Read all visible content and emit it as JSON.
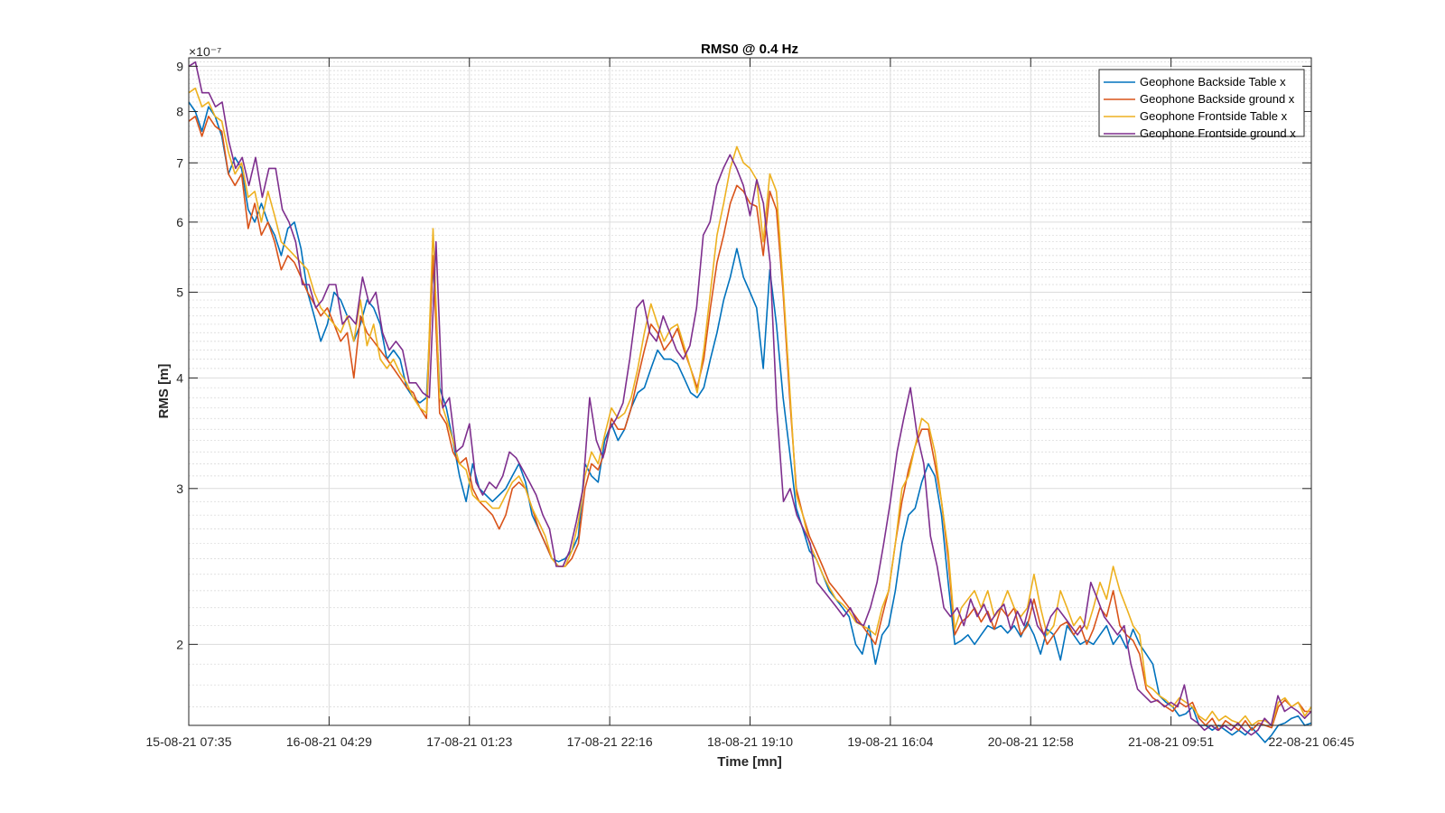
{
  "chart_data": {
    "type": "line",
    "title": "RMS0 @ 0.4 Hz",
    "xlabel": "Time [mn]",
    "ylabel": "RMS [m]",
    "y_exponent": "×10⁻⁷",
    "y_scale": "log",
    "ylim": [
      1.62,
      9.2
    ],
    "xlim": [
      0,
      168
    ],
    "y_ticks": [
      2,
      3,
      4,
      5,
      6,
      7,
      8,
      9
    ],
    "y_tick_labels": [
      "2",
      "3",
      "4",
      "5",
      "6",
      "7",
      "8",
      "9"
    ],
    "x_ticks": [
      0,
      21,
      42,
      63,
      84,
      105,
      126,
      147,
      168
    ],
    "x_tick_labels": [
      "15-08-21 07:35",
      "16-08-21 04:29",
      "17-08-21 01:23",
      "17-08-21 22:16",
      "18-08-21 19:10",
      "19-08-21 16:04",
      "20-08-21 12:58",
      "21-08-21 09:51",
      "22-08-21 06:45"
    ],
    "grid": true,
    "legend_position": "top-right",
    "series": [
      {
        "name": "Geophone Backside Table x",
        "color": "#0072BD",
        "values": [
          8.2,
          8.0,
          7.6,
          8.1,
          7.9,
          7.5,
          6.8,
          7.1,
          6.9,
          6.2,
          6.0,
          6.3,
          6.0,
          5.8,
          5.5,
          5.9,
          6.0,
          5.6,
          5.0,
          4.7,
          4.4,
          4.6,
          5.0,
          4.9,
          4.7,
          4.4,
          4.6,
          4.9,
          4.8,
          4.6,
          4.2,
          4.3,
          4.2,
          3.9,
          3.8,
          3.75,
          3.8,
          5.4,
          3.9,
          3.7,
          3.4,
          3.1,
          2.9,
          3.2,
          3.0,
          2.95,
          2.9,
          2.95,
          3.0,
          3.1,
          3.2,
          3.05,
          2.8,
          2.7,
          2.6,
          2.5,
          2.48,
          2.5,
          2.55,
          2.65,
          3.2,
          3.1,
          3.05,
          3.4,
          3.55,
          3.4,
          3.5,
          3.7,
          3.85,
          3.9,
          4.1,
          4.3,
          4.2,
          4.2,
          4.15,
          4.0,
          3.85,
          3.8,
          3.9,
          4.2,
          4.5,
          4.9,
          5.2,
          5.6,
          5.2,
          5.0,
          4.8,
          4.1,
          5.3,
          4.6,
          3.8,
          3.3,
          2.85,
          2.7,
          2.55,
          2.5,
          2.4,
          2.3,
          2.25,
          2.2,
          2.15,
          2.0,
          1.95,
          2.1,
          1.9,
          2.05,
          2.1,
          2.3,
          2.6,
          2.8,
          2.85,
          3.05,
          3.2,
          3.1,
          2.8,
          2.35,
          2.0,
          2.02,
          2.05,
          2.0,
          2.05,
          2.1,
          2.08,
          2.1,
          2.06,
          2.1,
          2.04,
          2.12,
          2.05,
          1.95,
          2.08,
          2.05,
          1.92,
          2.1,
          2.05,
          2.0,
          2.02,
          2.0,
          2.05,
          2.1,
          2.0,
          2.05,
          1.98,
          2.08,
          2.0,
          1.95,
          1.9,
          1.75,
          1.72,
          1.7,
          1.66,
          1.67,
          1.7,
          1.62,
          1.62,
          1.6,
          1.62,
          1.6,
          1.58,
          1.6,
          1.58,
          1.61,
          1.58,
          1.55,
          1.58,
          1.62,
          1.63,
          1.65,
          1.66,
          1.62,
          1.63
        ]
      },
      {
        "name": "Geophone Backside ground x",
        "color": "#D95319",
        "values": [
          7.8,
          7.9,
          7.5,
          7.9,
          7.7,
          7.6,
          6.8,
          6.6,
          6.8,
          5.9,
          6.3,
          5.8,
          6.0,
          5.7,
          5.3,
          5.5,
          5.4,
          5.2,
          5.0,
          4.85,
          4.7,
          4.8,
          4.6,
          4.4,
          4.5,
          4.0,
          4.7,
          4.5,
          4.4,
          4.3,
          4.2,
          4.1,
          4.0,
          3.9,
          3.85,
          3.7,
          3.6,
          5.5,
          3.65,
          3.55,
          3.3,
          3.2,
          3.25,
          3.0,
          2.9,
          2.85,
          2.8,
          2.7,
          2.8,
          3.0,
          3.05,
          3.0,
          2.85,
          2.7,
          2.6,
          2.5,
          2.45,
          2.45,
          2.5,
          2.6,
          3.0,
          3.2,
          3.15,
          3.3,
          3.6,
          3.5,
          3.5,
          3.7,
          4.0,
          4.3,
          4.6,
          4.5,
          4.3,
          4.4,
          4.55,
          4.3,
          4.1,
          3.9,
          4.2,
          4.8,
          5.4,
          5.8,
          6.3,
          6.6,
          6.5,
          6.3,
          6.25,
          5.5,
          6.5,
          6.2,
          5.0,
          3.8,
          3.0,
          2.8,
          2.65,
          2.55,
          2.45,
          2.35,
          2.3,
          2.25,
          2.2,
          2.15,
          2.1,
          2.05,
          2.0,
          2.15,
          2.3,
          2.6,
          2.9,
          3.15,
          3.35,
          3.5,
          3.5,
          3.2,
          2.9,
          2.5,
          2.05,
          2.12,
          2.15,
          2.2,
          2.12,
          2.18,
          2.08,
          2.2,
          2.15,
          2.2,
          2.05,
          2.1,
          2.25,
          2.1,
          2.0,
          2.05,
          2.1,
          2.12,
          2.05,
          2.1,
          2.0,
          2.08,
          2.2,
          2.15,
          2.3,
          2.1,
          2.05,
          2.02,
          1.95,
          1.78,
          1.74,
          1.72,
          1.7,
          1.68,
          1.72,
          1.7,
          1.72,
          1.65,
          1.62,
          1.65,
          1.6,
          1.64,
          1.62,
          1.6,
          1.64,
          1.6,
          1.63,
          1.62,
          1.61,
          1.7,
          1.73,
          1.7,
          1.72,
          1.68,
          1.68
        ]
      },
      {
        "name": "Geophone Frontside Table x",
        "color": "#EDB120",
        "values": [
          8.4,
          8.5,
          8.1,
          8.2,
          7.9,
          7.8,
          7.2,
          6.8,
          7.0,
          6.4,
          6.5,
          6.0,
          6.5,
          6.1,
          5.7,
          5.6,
          5.5,
          5.4,
          5.3,
          5.0,
          4.8,
          4.7,
          4.6,
          4.5,
          4.7,
          4.4,
          4.9,
          4.35,
          4.6,
          4.2,
          4.1,
          4.2,
          4.05,
          3.95,
          3.8,
          3.7,
          3.65,
          5.9,
          3.8,
          3.6,
          3.4,
          3.2,
          3.15,
          2.95,
          2.9,
          2.9,
          2.85,
          2.85,
          2.95,
          3.05,
          3.1,
          3.0,
          2.85,
          2.75,
          2.65,
          2.5,
          2.45,
          2.45,
          2.55,
          2.75,
          3.1,
          3.3,
          3.2,
          3.45,
          3.7,
          3.6,
          3.65,
          3.8,
          4.1,
          4.5,
          4.85,
          4.6,
          4.4,
          4.55,
          4.6,
          4.35,
          4.1,
          3.85,
          4.3,
          5.0,
          5.8,
          6.3,
          6.9,
          7.3,
          7.0,
          6.9,
          6.7,
          5.7,
          6.8,
          6.5,
          5.1,
          3.9,
          2.95,
          2.8,
          2.6,
          2.5,
          2.4,
          2.32,
          2.25,
          2.22,
          2.18,
          2.12,
          2.1,
          2.08,
          2.05,
          2.2,
          2.3,
          2.6,
          3.0,
          3.1,
          3.35,
          3.6,
          3.55,
          3.3,
          2.9,
          2.55,
          2.08,
          2.2,
          2.25,
          2.3,
          2.2,
          2.3,
          2.15,
          2.2,
          2.3,
          2.2,
          2.15,
          2.2,
          2.4,
          2.2,
          2.05,
          2.1,
          2.3,
          2.2,
          2.1,
          2.15,
          2.08,
          2.2,
          2.35,
          2.25,
          2.45,
          2.3,
          2.2,
          2.1,
          2.05,
          1.8,
          1.78,
          1.75,
          1.73,
          1.7,
          1.74,
          1.72,
          1.7,
          1.66,
          1.64,
          1.68,
          1.64,
          1.66,
          1.64,
          1.63,
          1.66,
          1.62,
          1.64,
          1.64,
          1.62,
          1.72,
          1.74,
          1.7,
          1.72,
          1.66,
          1.7
        ]
      },
      {
        "name": "Geophone Frontside ground x",
        "color": "#7E2F8E",
        "values": [
          9.0,
          9.1,
          8.4,
          8.4,
          8.1,
          8.2,
          7.4,
          6.9,
          7.1,
          6.6,
          7.1,
          6.4,
          6.9,
          6.9,
          6.2,
          6.0,
          5.7,
          5.1,
          5.1,
          4.8,
          4.9,
          5.1,
          5.1,
          4.6,
          4.7,
          4.6,
          5.2,
          4.85,
          5.0,
          4.5,
          4.3,
          4.4,
          4.3,
          3.95,
          3.95,
          3.85,
          3.8,
          5.7,
          3.7,
          3.8,
          3.3,
          3.35,
          3.55,
          3.05,
          2.95,
          3.05,
          3.0,
          3.1,
          3.3,
          3.25,
          3.15,
          3.05,
          2.95,
          2.8,
          2.7,
          2.45,
          2.45,
          2.55,
          2.75,
          3.0,
          3.8,
          3.4,
          3.25,
          3.5,
          3.6,
          3.75,
          4.2,
          4.8,
          4.9,
          4.5,
          4.4,
          4.7,
          4.5,
          4.3,
          4.2,
          4.35,
          4.8,
          5.8,
          6.0,
          6.6,
          6.9,
          7.15,
          6.9,
          6.6,
          6.1,
          6.7,
          6.3,
          5.4,
          3.7,
          2.9,
          3.0,
          2.8,
          2.7,
          2.6,
          2.35,
          2.3,
          2.25,
          2.2,
          2.15,
          2.2,
          2.12,
          2.1,
          2.2,
          2.35,
          2.6,
          2.9,
          3.3,
          3.6,
          3.9,
          3.45,
          3.2,
          2.65,
          2.45,
          2.2,
          2.15,
          2.2,
          2.1,
          2.25,
          2.15,
          2.22,
          2.12,
          2.18,
          2.22,
          2.08,
          2.18,
          2.1,
          2.25,
          2.1,
          2.05,
          2.15,
          2.2,
          2.15,
          2.1,
          2.05,
          2.1,
          2.35,
          2.25,
          2.15,
          2.1,
          2.05,
          2.1,
          1.9,
          1.78,
          1.75,
          1.72,
          1.73,
          1.7,
          1.72,
          1.7,
          1.8,
          1.65,
          1.63,
          1.6,
          1.62,
          1.6,
          1.62,
          1.6,
          1.63,
          1.6,
          1.58,
          1.6,
          1.65,
          1.62,
          1.75,
          1.68,
          1.7,
          1.68,
          1.65,
          1.68
        ]
      }
    ]
  }
}
